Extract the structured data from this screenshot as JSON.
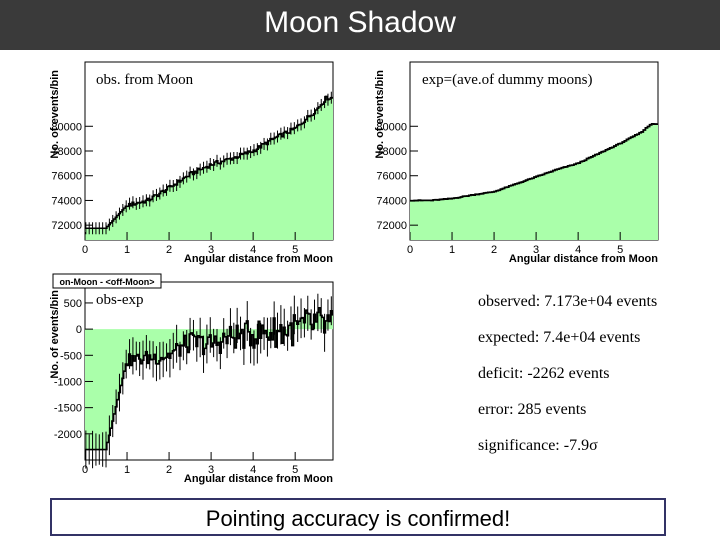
{
  "title": "Moon Shadow",
  "conclusion": "Pointing accuracy is confirmed!",
  "stats": {
    "observed": "observed: 7.173e+04 events",
    "expected": "expected: 7.4e+04 events",
    "deficit": "deficit: -2262 events",
    "error": "error: 285 events",
    "significance": "significance: -7.9σ"
  },
  "colors": {
    "fill": "#aaffaa",
    "line": "#000000",
    "titlebar": "#3a3a3a"
  },
  "chart_data": [
    {
      "type": "area",
      "legend": "obs. from Moon",
      "xlabel": "Angular distance from Moon",
      "ylabel": "No. of events/bin",
      "xlim": [
        0,
        5.9
      ],
      "ylim": [
        70800,
        85200
      ],
      "xticks": [
        "0",
        "1",
        "2",
        "3",
        "4",
        "5"
      ],
      "yticks": [
        "72000",
        "74000",
        "76000",
        "78000",
        "80000"
      ],
      "x": [
        0.0,
        0.5,
        1.0,
        1.5,
        2.0,
        2.5,
        3.0,
        3.5,
        4.0,
        4.5,
        5.0,
        5.5,
        5.75
      ],
      "values": [
        71750,
        71750,
        73600,
        74000,
        75000,
        76100,
        76900,
        77400,
        78000,
        79000,
        79800,
        81300,
        82300
      ]
    },
    {
      "type": "area",
      "legend": "exp=(ave.of dummy moons)",
      "xlabel": "Angular distance from Moon",
      "ylabel": "No. of events/bin",
      "xlim": [
        0,
        5.9
      ],
      "ylim": [
        70800,
        85200
      ],
      "xticks": [
        "0",
        "1",
        "2",
        "3",
        "4",
        "5"
      ],
      "yticks": [
        "72000",
        "74000",
        "76000",
        "78000",
        "80000"
      ],
      "x": [
        0.0,
        0.5,
        1.0,
        1.5,
        2.0,
        2.5,
        3.0,
        3.5,
        4.0,
        4.5,
        5.0,
        5.5,
        5.75
      ],
      "values": [
        74000,
        74000,
        74150,
        74450,
        74700,
        75300,
        75900,
        76500,
        77000,
        77800,
        78600,
        79500,
        80200
      ]
    },
    {
      "type": "area",
      "header": "on-Moon - <off-Moon>",
      "legend": "obs-exp",
      "xlabel": "Angular distance from Moon",
      "ylabel": "No. of events/bin",
      "xlim": [
        0,
        5.9
      ],
      "ylim": [
        -2500,
        900
      ],
      "xticks": [
        "0",
        "1",
        "2",
        "3",
        "4",
        "5"
      ],
      "yticks": [
        "500",
        "0",
        "-500",
        "-1000",
        "-1500",
        "-2000"
      ],
      "x": [
        0.0,
        0.5,
        1.0,
        1.5,
        2.0,
        2.5,
        3.0,
        3.5,
        4.0,
        4.5,
        5.0,
        5.5,
        5.75
      ],
      "values": [
        -2300,
        -2300,
        -600,
        -550,
        -500,
        -250,
        -300,
        -150,
        -100,
        -50,
        0,
        100,
        50
      ]
    }
  ]
}
